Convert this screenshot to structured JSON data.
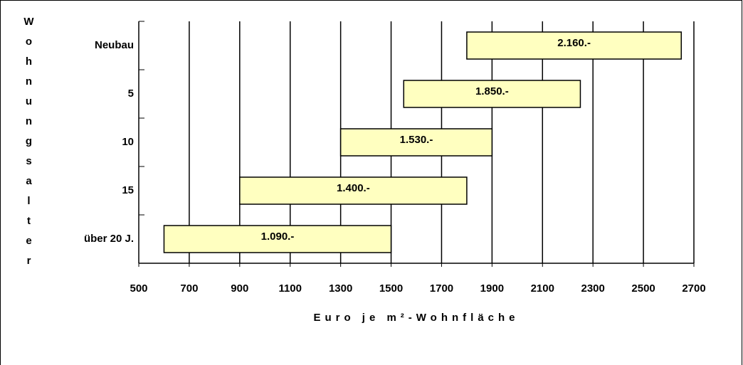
{
  "chart_data": {
    "type": "floating-bar",
    "y_label": "Wohnungsalter",
    "x_label": "Euro je m²-Wohnfläche",
    "categories": [
      "Neubau",
      "5",
      "10",
      "15",
      "über 20 J."
    ],
    "starts": [
      1800,
      1550,
      1300,
      900,
      600
    ],
    "ends": [
      2650,
      2250,
      1900,
      1800,
      1500
    ],
    "bar_labels": [
      "2.160.-",
      "1.850.-",
      "1.530.-",
      "1.400.-",
      "1.090.-"
    ],
    "color": "#ffffc0",
    "xlim": [
      500,
      2700
    ],
    "xticks": [
      500,
      700,
      900,
      1100,
      1300,
      1500,
      1700,
      1900,
      2100,
      2300,
      2500,
      2700
    ],
    "grid": true
  }
}
